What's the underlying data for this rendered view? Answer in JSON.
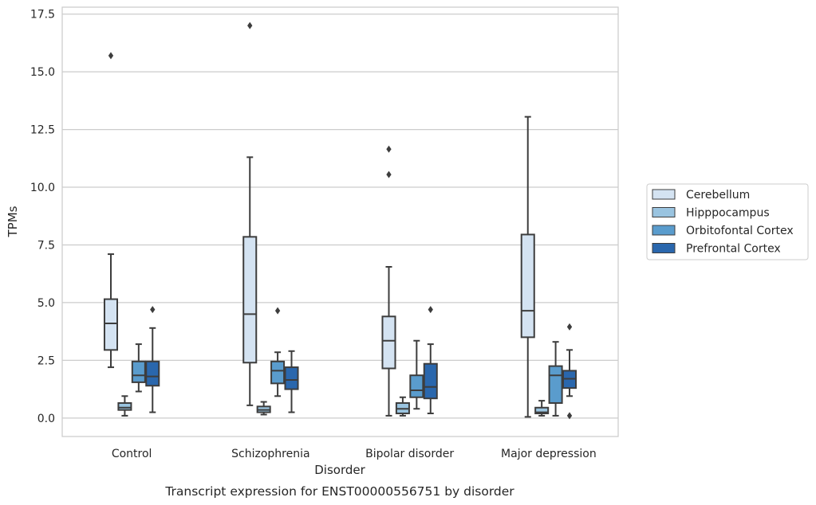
{
  "caption": "Transcript expression for ENST00000556751 by disorder",
  "chart_data": {
    "type": "boxplot",
    "xlabel": "Disorder",
    "ylabel": "TPMs",
    "ylim": [
      -0.8,
      17.8
    ],
    "yticks": [
      0.0,
      2.5,
      5.0,
      7.5,
      10.0,
      12.5,
      15.0,
      17.5
    ],
    "ytick_labels": [
      "0.0",
      "2.5",
      "5.0",
      "7.5",
      "10.0",
      "12.5",
      "15.0",
      "17.5"
    ],
    "grid": "horizontal",
    "legend_position": "right",
    "categories": [
      "Control",
      "Schizophrenia",
      "Bipolar disorder",
      "Major depression"
    ],
    "series": [
      {
        "name": "Cerebellum",
        "color": "#d4e3f2",
        "boxes": [
          {
            "whislo": 2.2,
            "q1": 2.95,
            "med": 4.1,
            "q3": 5.15,
            "whishi": 7.1,
            "fliers": [
              15.7
            ]
          },
          {
            "whislo": 0.55,
            "q1": 2.4,
            "med": 4.5,
            "q3": 7.85,
            "whishi": 11.3,
            "fliers": [
              17.0
            ]
          },
          {
            "whislo": 0.1,
            "q1": 2.15,
            "med": 3.35,
            "q3": 4.4,
            "whishi": 6.55,
            "fliers": [
              10.55,
              11.65
            ]
          },
          {
            "whislo": 0.05,
            "q1": 3.5,
            "med": 4.65,
            "q3": 7.95,
            "whishi": 13.05,
            "fliers": []
          }
        ]
      },
      {
        "name": "Hipppocampus",
        "color": "#9ac4e0",
        "boxes": [
          {
            "whislo": 0.1,
            "q1": 0.35,
            "med": 0.45,
            "q3": 0.65,
            "whishi": 0.95,
            "fliers": []
          },
          {
            "whislo": 0.15,
            "q1": 0.25,
            "med": 0.35,
            "q3": 0.5,
            "whishi": 0.7,
            "fliers": []
          },
          {
            "whislo": 0.1,
            "q1": 0.2,
            "med": 0.4,
            "q3": 0.65,
            "whishi": 0.9,
            "fliers": []
          },
          {
            "whislo": 0.1,
            "q1": 0.2,
            "med": 0.25,
            "q3": 0.45,
            "whishi": 0.75,
            "fliers": []
          }
        ]
      },
      {
        "name": "Orbitofontal Cortex",
        "color": "#5a9ccd",
        "boxes": [
          {
            "whislo": 1.15,
            "q1": 1.55,
            "med": 1.85,
            "q3": 2.45,
            "whishi": 3.2,
            "fliers": []
          },
          {
            "whislo": 0.95,
            "q1": 1.5,
            "med": 2.05,
            "q3": 2.45,
            "whishi": 2.85,
            "fliers": [
              4.65
            ]
          },
          {
            "whislo": 0.4,
            "q1": 0.9,
            "med": 1.2,
            "q3": 1.85,
            "whishi": 3.35,
            "fliers": []
          },
          {
            "whislo": 0.1,
            "q1": 0.65,
            "med": 1.85,
            "q3": 2.25,
            "whishi": 3.3,
            "fliers": []
          }
        ]
      },
      {
        "name": "Prefrontal Cortex",
        "color": "#2a67ad",
        "boxes": [
          {
            "whislo": 0.25,
            "q1": 1.4,
            "med": 1.8,
            "q3": 2.45,
            "whishi": 3.9,
            "fliers": [
              4.7
            ]
          },
          {
            "whislo": 0.25,
            "q1": 1.25,
            "med": 1.65,
            "q3": 2.2,
            "whishi": 2.9,
            "fliers": []
          },
          {
            "whislo": 0.2,
            "q1": 0.85,
            "med": 1.35,
            "q3": 2.35,
            "whishi": 3.2,
            "fliers": [
              4.7
            ]
          },
          {
            "whislo": 0.95,
            "q1": 1.3,
            "med": 1.7,
            "q3": 2.05,
            "whishi": 2.95,
            "fliers": [
              3.95,
              0.1
            ]
          }
        ]
      }
    ]
  }
}
